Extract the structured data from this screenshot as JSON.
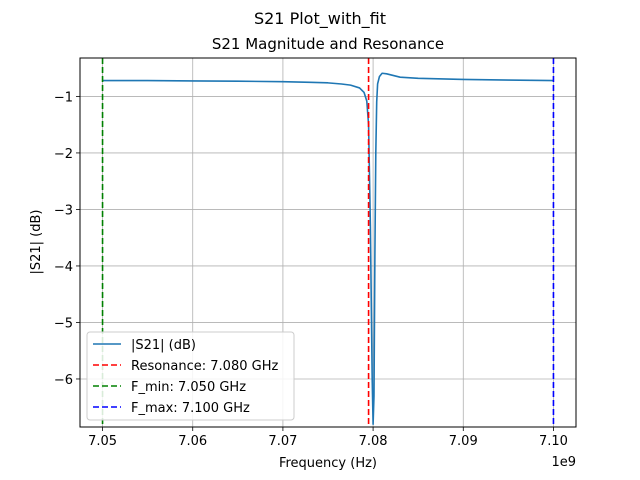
{
  "figure": {
    "suptitle": "S21 Plot_with_fit"
  },
  "chart_data": {
    "type": "line",
    "title": "S21 Magnitude and Resonance",
    "xlabel": "Frequency (Hz)",
    "ylabel": "|S21| (dB)",
    "x_offset_label": "1e9",
    "xlim": [
      7.0475,
      7.1025
    ],
    "ylim": [
      -6.85,
      -0.32
    ],
    "x_ticks": [
      7.05,
      7.06,
      7.07,
      7.08,
      7.09,
      7.1
    ],
    "x_tick_labels": [
      "7.05",
      "7.06",
      "7.07",
      "7.08",
      "7.09",
      "7.10"
    ],
    "y_ticks": [
      -1,
      -2,
      -3,
      -4,
      -5,
      -6
    ],
    "y_tick_labels": [
      "−1",
      "−2",
      "−3",
      "−4",
      "−5",
      "−6"
    ],
    "grid": true,
    "legend_position": "lower-left",
    "series": [
      {
        "name": "|S21| (dB)",
        "color": "#1f77b4",
        "style": "solid",
        "x": [
          7.05,
          7.055,
          7.06,
          7.065,
          7.07,
          7.073,
          7.075,
          7.0765,
          7.0775,
          7.0785,
          7.079,
          7.0793,
          7.0795,
          7.0797,
          7.0799,
          7.08,
          7.0801,
          7.0802,
          7.0803,
          7.0804,
          7.0805,
          7.0807,
          7.081,
          7.0815,
          7.082,
          7.0825,
          7.083,
          7.085,
          7.09,
          7.095,
          7.1
        ],
        "y": [
          -0.72,
          -0.72,
          -0.725,
          -0.73,
          -0.74,
          -0.75,
          -0.76,
          -0.78,
          -0.8,
          -0.85,
          -0.93,
          -1.08,
          -1.5,
          -3.3,
          -6.0,
          -6.8,
          -6.3,
          -3.8,
          -2.0,
          -1.1,
          -0.78,
          -0.65,
          -0.59,
          -0.6,
          -0.62,
          -0.64,
          -0.66,
          -0.68,
          -0.7,
          -0.71,
          -0.72
        ]
      },
      {
        "name": "Resonance: 7.080 GHz",
        "color": "#ff0000",
        "style": "dashed",
        "vline_x": 7.0795
      },
      {
        "name": "F_min: 7.050 GHz",
        "color": "#008000",
        "style": "dashed",
        "vline_x": 7.05
      },
      {
        "name": "F_max: 7.100 GHz",
        "color": "#0000ff",
        "style": "dashed",
        "vline_x": 7.1
      }
    ]
  }
}
